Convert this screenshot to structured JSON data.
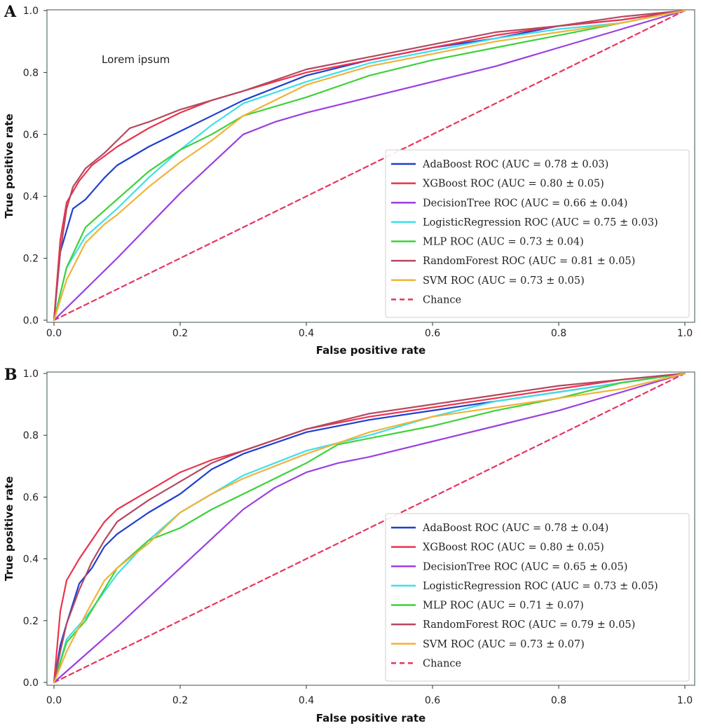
{
  "chart_data": [
    {
      "type": "line",
      "panel_label": "A",
      "xlabel": "False positive rate",
      "ylabel": "True positive rate",
      "xlim": [
        0,
        1
      ],
      "ylim": [
        0,
        1
      ],
      "xticks": [
        "0.0",
        "0.2",
        "0.4",
        "0.6",
        "0.8",
        "1.0"
      ],
      "yticks": [
        "0.0",
        "0.2",
        "0.4",
        "0.6",
        "0.8",
        "1.0"
      ],
      "annotation": "Lorem ipsum",
      "legend_position": "lower-right",
      "series": [
        {
          "name": "AdaBoost ROC (AUC = 0.78 ± 0.03)",
          "color": "#1f3fd0",
          "x": [
            0,
            0.01,
            0.03,
            0.05,
            0.08,
            0.1,
            0.15,
            0.2,
            0.25,
            0.3,
            0.4,
            0.5,
            0.6,
            0.7,
            0.8,
            0.9,
            1.0
          ],
          "y": [
            0,
            0.22,
            0.36,
            0.39,
            0.46,
            0.5,
            0.56,
            0.61,
            0.66,
            0.71,
            0.79,
            0.84,
            0.88,
            0.91,
            0.95,
            0.97,
            1.0
          ]
        },
        {
          "name": "XGBoost ROC (AUC = 0.80 ± 0.05)",
          "color": "#e8344e",
          "x": [
            0,
            0.01,
            0.02,
            0.04,
            0.06,
            0.1,
            0.15,
            0.2,
            0.25,
            0.3,
            0.4,
            0.5,
            0.6,
            0.7,
            0.8,
            0.9,
            1.0
          ],
          "y": [
            0,
            0.26,
            0.38,
            0.45,
            0.5,
            0.56,
            0.62,
            0.67,
            0.71,
            0.74,
            0.8,
            0.84,
            0.88,
            0.92,
            0.95,
            0.97,
            1.0
          ]
        },
        {
          "name": "DecisionTree ROC (AUC = 0.66 ± 0.04)",
          "color": "#9b3fe0",
          "x": [
            0,
            0.1,
            0.2,
            0.3,
            0.35,
            0.4,
            0.5,
            0.6,
            0.7,
            0.8,
            0.9,
            1.0
          ],
          "y": [
            0,
            0.2,
            0.41,
            0.6,
            0.64,
            0.67,
            0.72,
            0.77,
            0.82,
            0.88,
            0.94,
            1.0
          ]
        },
        {
          "name": "LogisticRegression ROC (AUC = 0.75 ± 0.03)",
          "color": "#3de0e8",
          "x": [
            0,
            0.02,
            0.05,
            0.1,
            0.15,
            0.2,
            0.25,
            0.3,
            0.4,
            0.5,
            0.6,
            0.7,
            0.8,
            0.9,
            1.0
          ],
          "y": [
            0,
            0.17,
            0.27,
            0.36,
            0.46,
            0.55,
            0.63,
            0.7,
            0.77,
            0.83,
            0.87,
            0.91,
            0.94,
            0.96,
            1.0
          ]
        },
        {
          "name": "MLP ROC (AUC = 0.73 ± 0.04)",
          "color": "#3ed23a",
          "x": [
            0,
            0.02,
            0.05,
            0.1,
            0.15,
            0.2,
            0.25,
            0.3,
            0.4,
            0.5,
            0.6,
            0.7,
            0.8,
            0.9,
            1.0
          ],
          "y": [
            0,
            0.17,
            0.3,
            0.39,
            0.48,
            0.55,
            0.6,
            0.66,
            0.72,
            0.79,
            0.84,
            0.88,
            0.92,
            0.96,
            1.0
          ]
        },
        {
          "name": "RandomForest ROC (AUC = 0.81 ± 0.05)",
          "color": "#b5485f",
          "x": [
            0,
            0.01,
            0.02,
            0.03,
            0.05,
            0.08,
            0.12,
            0.15,
            0.2,
            0.25,
            0.3,
            0.4,
            0.5,
            0.6,
            0.7,
            0.8,
            0.9,
            1.0
          ],
          "y": [
            0,
            0.22,
            0.36,
            0.43,
            0.49,
            0.54,
            0.62,
            0.64,
            0.68,
            0.71,
            0.74,
            0.81,
            0.85,
            0.89,
            0.93,
            0.95,
            0.98,
            1.0
          ]
        },
        {
          "name": "SVM ROC (AUC = 0.73 ± 0.05)",
          "color": "#f2b23a",
          "x": [
            0,
            0.02,
            0.05,
            0.08,
            0.1,
            0.15,
            0.2,
            0.25,
            0.3,
            0.4,
            0.5,
            0.6,
            0.7,
            0.8,
            0.9,
            1.0
          ],
          "y": [
            0,
            0.13,
            0.25,
            0.31,
            0.34,
            0.43,
            0.51,
            0.58,
            0.66,
            0.76,
            0.82,
            0.86,
            0.9,
            0.93,
            0.96,
            1.0
          ]
        },
        {
          "name": "Chance",
          "color": "#e8345e",
          "dashed": true,
          "x": [
            0,
            1
          ],
          "y": [
            0,
            1
          ]
        }
      ]
    },
    {
      "type": "line",
      "panel_label": "B",
      "xlabel": "False positive rate",
      "ylabel": "True positive rate",
      "xlim": [
        0,
        1
      ],
      "ylim": [
        0,
        1
      ],
      "xticks": [
        "0.0",
        "0.2",
        "0.4",
        "0.6",
        "0.8",
        "1.0"
      ],
      "yticks": [
        "0.0",
        "0.2",
        "0.4",
        "0.6",
        "0.8",
        "1.0"
      ],
      "legend_position": "lower-right",
      "series": [
        {
          "name": "AdaBoost ROC (AUC = 0.78 ± 0.04)",
          "color": "#1f3fd0",
          "x": [
            0,
            0.01,
            0.02,
            0.04,
            0.06,
            0.08,
            0.1,
            0.15,
            0.2,
            0.25,
            0.3,
            0.4,
            0.5,
            0.6,
            0.7,
            0.8,
            0.9,
            1.0
          ],
          "y": [
            0,
            0.12,
            0.19,
            0.32,
            0.37,
            0.44,
            0.48,
            0.55,
            0.61,
            0.69,
            0.74,
            0.81,
            0.85,
            0.88,
            0.91,
            0.94,
            0.97,
            1.0
          ]
        },
        {
          "name": "XGBoost ROC (AUC = 0.80 ± 0.05)",
          "color": "#e8344e",
          "x": [
            0,
            0.01,
            0.02,
            0.04,
            0.06,
            0.08,
            0.1,
            0.15,
            0.2,
            0.25,
            0.3,
            0.4,
            0.5,
            0.6,
            0.7,
            0.8,
            0.9,
            1.0
          ],
          "y": [
            0,
            0.23,
            0.33,
            0.4,
            0.46,
            0.52,
            0.56,
            0.62,
            0.68,
            0.72,
            0.75,
            0.82,
            0.86,
            0.89,
            0.92,
            0.95,
            0.98,
            1.0
          ]
        },
        {
          "name": "DecisionTree ROC (AUC = 0.65 ± 0.05)",
          "color": "#9b3fe0",
          "x": [
            0,
            0.1,
            0.2,
            0.3,
            0.35,
            0.4,
            0.45,
            0.5,
            0.6,
            0.7,
            0.8,
            0.9,
            1.0
          ],
          "y": [
            0,
            0.18,
            0.37,
            0.56,
            0.63,
            0.68,
            0.71,
            0.73,
            0.78,
            0.83,
            0.88,
            0.94,
            1.0
          ]
        },
        {
          "name": "LogisticRegression ROC (AUC = 0.73 ± 0.05)",
          "color": "#3de0e8",
          "x": [
            0,
            0.02,
            0.05,
            0.1,
            0.15,
            0.2,
            0.25,
            0.3,
            0.4,
            0.5,
            0.6,
            0.7,
            0.8,
            0.9,
            1.0
          ],
          "y": [
            0,
            0.14,
            0.21,
            0.35,
            0.46,
            0.55,
            0.61,
            0.67,
            0.75,
            0.8,
            0.86,
            0.91,
            0.94,
            0.97,
            1.0
          ]
        },
        {
          "name": "MLP ROC (AUC = 0.71 ± 0.07)",
          "color": "#3ed23a",
          "x": [
            0,
            0.02,
            0.05,
            0.1,
            0.15,
            0.2,
            0.25,
            0.3,
            0.4,
            0.45,
            0.5,
            0.6,
            0.7,
            0.8,
            0.9,
            1.0
          ],
          "y": [
            0,
            0.13,
            0.2,
            0.37,
            0.46,
            0.5,
            0.56,
            0.61,
            0.71,
            0.77,
            0.79,
            0.83,
            0.88,
            0.92,
            0.97,
            1.0
          ]
        },
        {
          "name": "RandomForest ROC (AUC = 0.79 ± 0.05)",
          "color": "#b5485f",
          "x": [
            0,
            0.01,
            0.02,
            0.04,
            0.06,
            0.08,
            0.1,
            0.15,
            0.2,
            0.25,
            0.3,
            0.4,
            0.5,
            0.6,
            0.7,
            0.8,
            0.9,
            1.0
          ],
          "y": [
            0,
            0.1,
            0.19,
            0.3,
            0.39,
            0.46,
            0.52,
            0.59,
            0.65,
            0.71,
            0.75,
            0.82,
            0.87,
            0.9,
            0.93,
            0.96,
            0.98,
            1.0
          ]
        },
        {
          "name": "SVM ROC (AUC = 0.73 ± 0.07)",
          "color": "#f2b23a",
          "x": [
            0,
            0.02,
            0.05,
            0.08,
            0.1,
            0.15,
            0.2,
            0.25,
            0.3,
            0.4,
            0.5,
            0.6,
            0.7,
            0.8,
            0.9,
            1.0
          ],
          "y": [
            0,
            0.1,
            0.22,
            0.33,
            0.37,
            0.45,
            0.55,
            0.61,
            0.66,
            0.74,
            0.81,
            0.86,
            0.89,
            0.92,
            0.95,
            1.0
          ]
        },
        {
          "name": "Chance",
          "color": "#e8345e",
          "dashed": true,
          "x": [
            0,
            1
          ],
          "y": [
            0,
            1
          ]
        }
      ]
    }
  ]
}
